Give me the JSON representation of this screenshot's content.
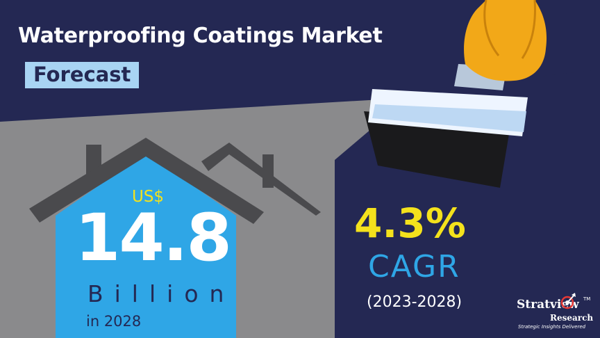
{
  "header": {
    "title": "Waterproofing Coatings Market",
    "subtitle": "Forecast"
  },
  "market_size": {
    "currency": "US$",
    "value": "14.8",
    "unit": "Billion",
    "year": "in 2028"
  },
  "growth": {
    "rate": "4.3%",
    "label": "CAGR",
    "period": "(2023-2028)"
  },
  "logo": {
    "name": "Stratview",
    "trademark": "TM",
    "line2": "Research",
    "tagline": "Strategic Insights Delivered"
  },
  "colors": {
    "navy": "#242853",
    "gray": "#8a8a8c",
    "house_blue": "#2fa6e6",
    "roof_dark": "#4a4a4d",
    "accent_yellow": "#f4e21c",
    "subtitle_bg": "#a8d4f3",
    "hand_orange": "#f2a818"
  },
  "icons": [
    "house-icon",
    "paint-brush-icon",
    "hand-icon",
    "logo-icon"
  ]
}
